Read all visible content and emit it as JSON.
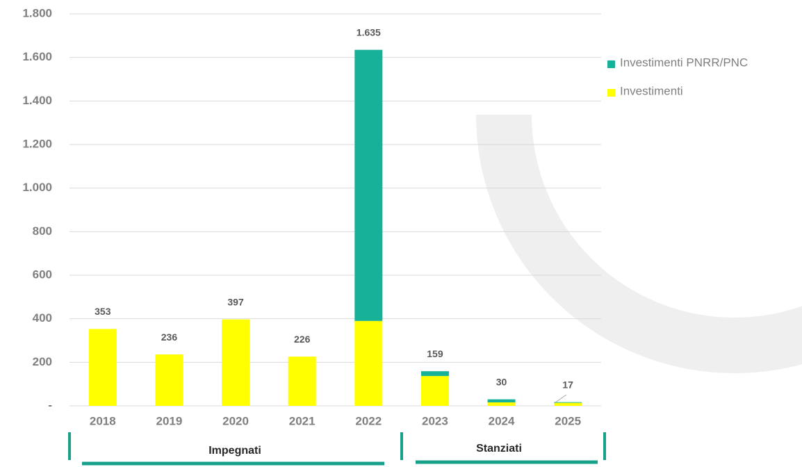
{
  "chart_data": {
    "type": "stacked_bar",
    "categories": [
      "2018",
      "2019",
      "2020",
      "2021",
      "2022",
      "2023",
      "2024",
      "2025"
    ],
    "series": [
      {
        "name": "Investimenti",
        "color": "#ffff00",
        "values": [
          353,
          236,
          397,
          226,
          390,
          137,
          16,
          14
        ]
      },
      {
        "name": "Investimenti PNRR/PNC",
        "color": "#17b098",
        "values": [
          0,
          0,
          0,
          0,
          1245,
          22,
          14,
          3
        ]
      }
    ],
    "totals": [
      353,
      236,
      397,
      226,
      1635,
      159,
      30,
      17
    ],
    "value_labels": [
      "353",
      "236",
      "397",
      "226",
      "1.635",
      "159",
      "30",
      "17"
    ],
    "ylim": [
      0,
      1800
    ],
    "yticks": [
      {
        "value": 0,
        "label": "-"
      },
      200,
      400,
      600,
      800,
      {
        "value": 1000,
        "label": "1.000"
      },
      {
        "value": 1200,
        "label": "1.200"
      },
      {
        "value": 1400,
        "label": "1.400"
      },
      {
        "value": 1600,
        "label": "1.600"
      },
      {
        "value": 1800,
        "label": "1.800"
      }
    ],
    "grid": true,
    "groups": [
      {
        "label": "Impegnati"
      },
      {
        "label": "Stanziati"
      }
    ]
  }
}
